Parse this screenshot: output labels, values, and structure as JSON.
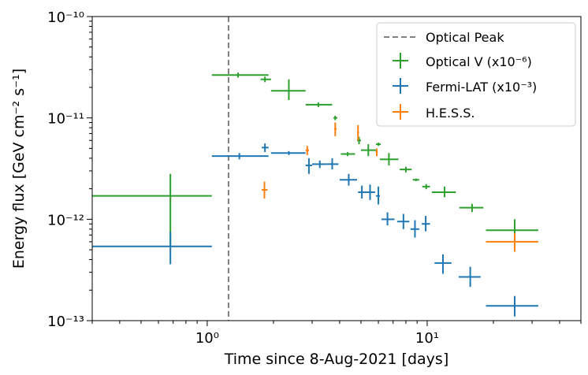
{
  "chart_data": {
    "type": "scatter",
    "xscale": "log",
    "yscale": "log",
    "xlim": [
      0.3,
      50
    ],
    "ylim": [
      1e-13,
      1e-10
    ],
    "xlabel": "Time since 8-Aug-2021 [days]",
    "ylabel": "Energy flux [GeV cm⁻² s⁻¹]",
    "x_ticks": [
      {
        "value": 1,
        "label": "10⁰"
      },
      {
        "value": 10,
        "label": "10¹"
      }
    ],
    "y_ticks": [
      {
        "value": 1e-13,
        "label": "10⁻¹³"
      },
      {
        "value": 1e-12,
        "label": "10⁻¹²"
      },
      {
        "value": 1e-11,
        "label": "10⁻¹¹"
      },
      {
        "value": 1e-10,
        "label": "10⁻¹⁰"
      }
    ],
    "vline": {
      "x": 1.25,
      "label": "Optical Peak",
      "color": "#808080",
      "style": "dashed"
    },
    "legend_position": "top-right",
    "series": [
      {
        "name": "Optical V (x10⁻⁶)",
        "color": "#2ca02c",
        "points": [
          {
            "x": 0.68,
            "y": 1.7e-12,
            "xlo": 0.3,
            "xhi": 1.05,
            "ylo": 5.3e-13,
            "yhi": 2.8e-12
          },
          {
            "x": 1.38,
            "y": 2.65e-11,
            "xlo": 1.05,
            "xhi": 1.9,
            "ylo": 2.5e-11,
            "yhi": 2.8e-11
          },
          {
            "x": 1.83,
            "y": 2.4e-11,
            "xlo": 1.75,
            "xhi": 1.95,
            "ylo": 2.25e-11,
            "yhi": 2.55e-11
          },
          {
            "x": 2.35,
            "y": 1.85e-11,
            "xlo": 1.95,
            "xhi": 2.8,
            "ylo": 1.5e-11,
            "yhi": 2.4e-11
          },
          {
            "x": 3.2,
            "y": 1.35e-11,
            "xlo": 2.8,
            "xhi": 3.7,
            "ylo": 1.28e-11,
            "yhi": 1.42e-11
          },
          {
            "x": 3.82,
            "y": 1e-11,
            "xlo": 3.75,
            "xhi": 3.9,
            "ylo": 9.5e-12,
            "yhi": 1.05e-11
          },
          {
            "x": 4.35,
            "y": 4.4e-12,
            "xlo": 4.05,
            "xhi": 4.7,
            "ylo": 4.2e-12,
            "yhi": 4.6e-12
          },
          {
            "x": 4.9,
            "y": 6e-12,
            "xlo": 4.8,
            "xhi": 5.0,
            "ylo": 5.5e-12,
            "yhi": 6.5e-12
          },
          {
            "x": 5.4,
            "y": 4.8e-12,
            "xlo": 5.0,
            "xhi": 5.9,
            "ylo": 4.2e-12,
            "yhi": 5.5e-12
          },
          {
            "x": 6.0,
            "y": 5.5e-12,
            "xlo": 5.85,
            "xhi": 6.15,
            "ylo": 5.3e-12,
            "yhi": 5.7e-12
          },
          {
            "x": 6.7,
            "y": 3.9e-12,
            "xlo": 6.1,
            "xhi": 7.4,
            "ylo": 3.4e-12,
            "yhi": 4.5e-12
          },
          {
            "x": 8.0,
            "y": 3.1e-12,
            "xlo": 7.5,
            "xhi": 8.5,
            "ylo": 2.9e-12,
            "yhi": 3.3e-12
          },
          {
            "x": 8.9,
            "y": 2.45e-12,
            "xlo": 8.6,
            "xhi": 9.2,
            "ylo": 2.38e-12,
            "yhi": 2.52e-12
          },
          {
            "x": 9.9,
            "y": 2.1e-12,
            "xlo": 9.5,
            "xhi": 10.3,
            "ylo": 1.98e-12,
            "yhi": 2.22e-12
          },
          {
            "x": 12.0,
            "y": 1.85e-12,
            "xlo": 10.5,
            "xhi": 13.5,
            "ylo": 1.65e-12,
            "yhi": 2.1e-12
          },
          {
            "x": 16.0,
            "y": 1.3e-12,
            "xlo": 14.0,
            "xhi": 18.0,
            "ylo": 1.18e-12,
            "yhi": 1.42e-12
          },
          {
            "x": 25.0,
            "y": 7.8e-13,
            "xlo": 18.5,
            "xhi": 32.0,
            "ylo": 6e-13,
            "yhi": 1e-12
          }
        ]
      },
      {
        "name": "Fermi-LAT (x10⁻³)",
        "color": "#1f77b4",
        "points": [
          {
            "x": 0.68,
            "y": 5.4e-13,
            "xlo": 0.3,
            "xhi": 1.05,
            "ylo": 3.6e-13,
            "yhi": 7.5e-13
          },
          {
            "x": 1.4,
            "y": 4.2e-12,
            "xlo": 1.05,
            "xhi": 1.9,
            "ylo": 3.9e-12,
            "yhi": 4.5e-12
          },
          {
            "x": 1.83,
            "y": 5.1e-12,
            "xlo": 1.77,
            "xhi": 1.9,
            "ylo": 4.6e-12,
            "yhi": 5.6e-12
          },
          {
            "x": 2.35,
            "y": 4.5e-12,
            "xlo": 1.95,
            "xhi": 2.8,
            "ylo": 4.3e-12,
            "yhi": 4.7e-12
          },
          {
            "x": 2.9,
            "y": 3.4e-12,
            "xlo": 2.8,
            "xhi": 3.0,
            "ylo": 2.8e-12,
            "yhi": 4e-12
          },
          {
            "x": 3.25,
            "y": 3.5e-12,
            "xlo": 3.0,
            "xhi": 3.5,
            "ylo": 3.2e-12,
            "yhi": 3.8e-12
          },
          {
            "x": 3.7,
            "y": 3.5e-12,
            "xlo": 3.5,
            "xhi": 3.95,
            "ylo": 3.1e-12,
            "yhi": 4e-12
          },
          {
            "x": 4.4,
            "y": 2.45e-12,
            "xlo": 4.0,
            "xhi": 4.8,
            "ylo": 2.15e-12,
            "yhi": 2.8e-12
          },
          {
            "x": 5.05,
            "y": 1.85e-12,
            "xlo": 4.85,
            "xhi": 5.3,
            "ylo": 1.6e-12,
            "yhi": 2.15e-12
          },
          {
            "x": 5.5,
            "y": 1.85e-12,
            "xlo": 5.3,
            "xhi": 5.8,
            "ylo": 1.55e-12,
            "yhi": 2.2e-12
          },
          {
            "x": 6.0,
            "y": 1.7e-12,
            "xlo": 5.85,
            "xhi": 6.1,
            "ylo": 1.4e-12,
            "yhi": 2.1e-12
          },
          {
            "x": 6.6,
            "y": 1e-12,
            "xlo": 6.2,
            "xhi": 7.1,
            "ylo": 8.7e-13,
            "yhi": 1.17e-12
          },
          {
            "x": 7.8,
            "y": 9.5e-13,
            "xlo": 7.3,
            "xhi": 8.3,
            "ylo": 8e-13,
            "yhi": 1.13e-12
          },
          {
            "x": 8.8,
            "y": 8e-13,
            "xlo": 8.4,
            "xhi": 9.2,
            "ylo": 6.6e-13,
            "yhi": 9.8e-13
          },
          {
            "x": 9.85,
            "y": 9e-13,
            "xlo": 9.45,
            "xhi": 10.3,
            "ylo": 7.6e-13,
            "yhi": 1.08e-12
          },
          {
            "x": 11.8,
            "y": 3.7e-13,
            "xlo": 10.8,
            "xhi": 12.9,
            "ylo": 2.9e-13,
            "yhi": 4.5e-13
          },
          {
            "x": 15.7,
            "y": 2.7e-13,
            "xlo": 13.9,
            "xhi": 17.5,
            "ylo": 2.15e-13,
            "yhi": 3.4e-13
          },
          {
            "x": 25.0,
            "y": 1.4e-13,
            "xlo": 18.5,
            "xhi": 32.0,
            "ylo": 1.1e-13,
            "yhi": 1.75e-13
          }
        ]
      },
      {
        "name": "H.E.S.S.",
        "color": "#ff7f0e",
        "points": [
          {
            "x": 1.82,
            "y": 1.95e-12,
            "xlo": 1.77,
            "xhi": 1.88,
            "ylo": 1.6e-12,
            "yhi": 2.35e-12
          },
          {
            "x": 2.85,
            "y": 4.8e-12,
            "xlo": 2.8,
            "xhi": 2.9,
            "ylo": 4.3e-12,
            "yhi": 5.3e-12
          },
          {
            "x": 3.82,
            "y": 7.8e-12,
            "xlo": 3.78,
            "xhi": 3.88,
            "ylo": 6.6e-12,
            "yhi": 9e-12
          },
          {
            "x": 4.85,
            "y": 7.2e-12,
            "xlo": 4.8,
            "xhi": 4.9,
            "ylo": 6e-12,
            "yhi": 8.5e-12
          },
          {
            "x": 5.9,
            "y": 4.6e-12,
            "xlo": 5.84,
            "xhi": 5.96,
            "ylo": 4.2e-12,
            "yhi": 5e-12
          },
          {
            "x": 25.0,
            "y": 6e-13,
            "xlo": 18.5,
            "xhi": 32.0,
            "ylo": 4.8e-13,
            "yhi": 7.3e-13
          }
        ]
      }
    ]
  }
}
